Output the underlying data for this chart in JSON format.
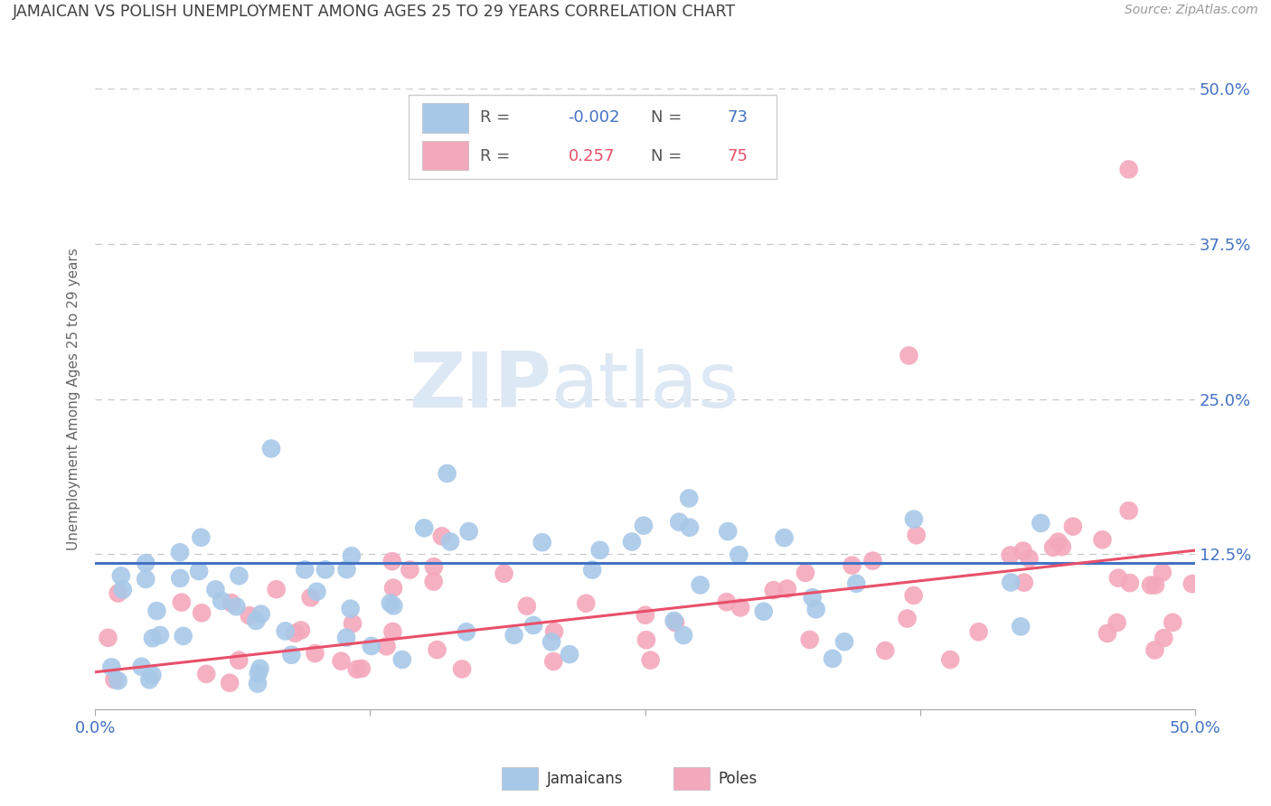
{
  "title": "JAMAICAN VS POLISH UNEMPLOYMENT AMONG AGES 25 TO 29 YEARS CORRELATION CHART",
  "source": "Source: ZipAtlas.com",
  "ylabel": "Unemployment Among Ages 25 to 29 years",
  "xlim": [
    0.0,
    0.5
  ],
  "ylim": [
    0.0,
    0.5
  ],
  "xticks": [
    0.0,
    0.125,
    0.25,
    0.375,
    0.5
  ],
  "xtick_labels": [
    "0.0%",
    "",
    "",
    "",
    "50.0%"
  ],
  "yticks": [
    0.0,
    0.125,
    0.25,
    0.375,
    0.5
  ],
  "ytick_labels_right": [
    "",
    "12.5%",
    "25.0%",
    "37.5%",
    "50.0%"
  ],
  "legend_r_jamaicans": "-0.002",
  "legend_n_jamaicans": "73",
  "legend_r_poles": "0.257",
  "legend_n_poles": "75",
  "jamaicans_color": "#A8C8E8",
  "poles_color": "#F4A8BC",
  "trend_jamaicans_color": "#4472C4",
  "trend_poles_color": "#E8506A",
  "grid_color": "#C8C8C8",
  "title_color": "#404040",
  "axis_label_color": "#4472C4",
  "watermark_color": "#DCE8F4",
  "jamaicans_seed": 42,
  "poles_seed": 99,
  "trend_j_y0": 0.118,
  "trend_j_y1": 0.118,
  "trend_p_y0": 0.03,
  "trend_p_y1": 0.128
}
